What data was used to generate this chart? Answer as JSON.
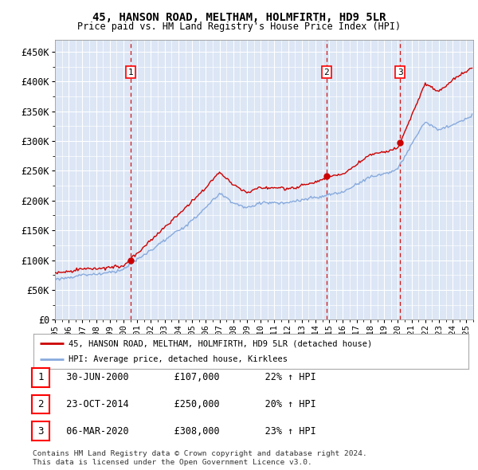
{
  "title": "45, HANSON ROAD, MELTHAM, HOLMFIRTH, HD9 5LR",
  "subtitle": "Price paid vs. HM Land Registry's House Price Index (HPI)",
  "yticks": [
    0,
    50000,
    100000,
    150000,
    200000,
    250000,
    300000,
    350000,
    400000,
    450000
  ],
  "ytick_labels": [
    "£0",
    "£50K",
    "£100K",
    "£150K",
    "£200K",
    "£250K",
    "£300K",
    "£350K",
    "£400K",
    "£450K"
  ],
  "xlim_start": 1995.0,
  "xlim_end": 2025.5,
  "ylim_bottom": 0,
  "ylim_top": 470000,
  "plot_bg_color": "#dce6f5",
  "grid_color": "#ffffff",
  "sale_color": "#cc0000",
  "hpi_color": "#88aadd",
  "legend_label_sale": "45, HANSON ROAD, MELTHAM, HOLMFIRTH, HD9 5LR (detached house)",
  "legend_label_hpi": "HPI: Average price, detached house, Kirklees",
  "transactions": [
    {
      "num": 1,
      "date": "30-JUN-2000",
      "price": 107000,
      "hpi_pct": 22,
      "x": 2000.5
    },
    {
      "num": 2,
      "date": "23-OCT-2014",
      "price": 250000,
      "hpi_pct": 20,
      "x": 2014.8
    },
    {
      "num": 3,
      "date": "06-MAR-2020",
      "price": 308000,
      "hpi_pct": 23,
      "x": 2020.17
    }
  ],
  "footer1": "Contains HM Land Registry data © Crown copyright and database right 2024.",
  "footer2": "This data is licensed under the Open Government Licence v3.0.",
  "xtick_years": [
    1995,
    1996,
    1997,
    1998,
    1999,
    2000,
    2001,
    2002,
    2003,
    2004,
    2005,
    2006,
    2007,
    2008,
    2009,
    2010,
    2011,
    2012,
    2013,
    2014,
    2015,
    2016,
    2017,
    2018,
    2019,
    2020,
    2021,
    2022,
    2023,
    2024,
    2025
  ],
  "hpi_base_values": {
    "1995": 68000,
    "2000": 83000,
    "2005": 165000,
    "2007": 210000,
    "2008": 195000,
    "2009": 185000,
    "2010": 195000,
    "2012": 195000,
    "2014": 205000,
    "2016": 215000,
    "2018": 240000,
    "2020": 255000,
    "2021": 295000,
    "2022": 335000,
    "2023": 320000,
    "2024": 330000,
    "2025.4": 345000
  },
  "sale_base_values": {
    "1995": 78000,
    "2000": 95000,
    "2000.5": 107000,
    "2005": 205000,
    "2007": 255000,
    "2008": 235000,
    "2009": 220000,
    "2010": 230000,
    "2012": 228000,
    "2014": 240000,
    "2014.8": 250000,
    "2016": 255000,
    "2018": 290000,
    "2020": 300000,
    "2020.17": 308000,
    "2021": 355000,
    "2022": 410000,
    "2023": 395000,
    "2024": 415000,
    "2025.4": 435000
  }
}
